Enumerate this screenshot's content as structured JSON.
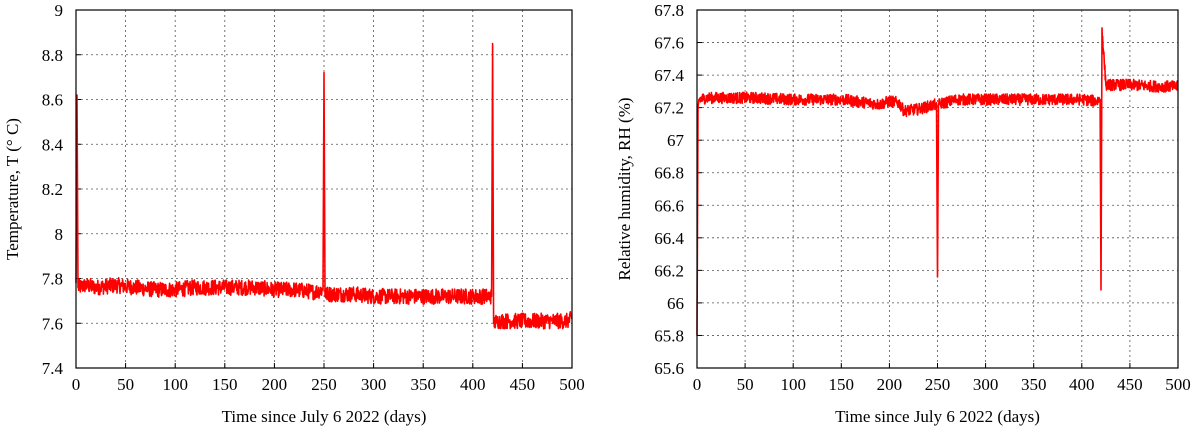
{
  "chart_data": [
    {
      "type": "line",
      "xlabel": "Time since July 6 2022 (days)",
      "ylabel": "Temperature, T (° C)",
      "xlim": [
        0,
        500
      ],
      "ylim": [
        7.4,
        9.0
      ],
      "xticks": [
        "0",
        "50",
        "100",
        "150",
        "200",
        "250",
        "300",
        "350",
        "400",
        "450",
        "500"
      ],
      "yticks": [
        "7.4",
        "7.6",
        "7.8",
        "8",
        "8.2",
        "8.4",
        "8.6",
        "8.8",
        "9"
      ],
      "grid": true,
      "series": [
        {
          "color": "#ff0000",
          "x": [
            0,
            1,
            2,
            10,
            20,
            40,
            60,
            80,
            100,
            120,
            150,
            180,
            200,
            220,
            240,
            249,
            250,
            251,
            260,
            280,
            300,
            320,
            340,
            360,
            380,
            400,
            415,
            419,
            420,
            421,
            425,
            440,
            460,
            480,
            495,
            500
          ],
          "y": [
            7.78,
            8.62,
            7.76,
            7.77,
            7.76,
            7.77,
            7.76,
            7.75,
            7.75,
            7.76,
            7.76,
            7.76,
            7.75,
            7.75,
            7.74,
            7.75,
            8.72,
            7.73,
            7.73,
            7.73,
            7.72,
            7.72,
            7.72,
            7.72,
            7.72,
            7.72,
            7.72,
            7.72,
            8.85,
            7.6,
            7.61,
            7.61,
            7.61,
            7.61,
            7.61,
            7.62
          ]
        }
      ]
    },
    {
      "type": "line",
      "xlabel": "Time since July 6 2022 (days)",
      "ylabel": "Relative humidity, RH (%)",
      "xlim": [
        0,
        500
      ],
      "ylim": [
        65.6,
        67.8
      ],
      "xticks": [
        "0",
        "50",
        "100",
        "150",
        "200",
        "250",
        "300",
        "350",
        "400",
        "450",
        "500"
      ],
      "yticks": [
        "65.6",
        "65.8",
        "66",
        "66.2",
        "66.4",
        "66.6",
        "66.8",
        "67",
        "67.2",
        "67.4",
        "67.6",
        "67.8"
      ],
      "grid": true,
      "series": [
        {
          "color": "#ff0000",
          "x": [
            0,
            1,
            2,
            10,
            30,
            60,
            100,
            150,
            190,
            200,
            210,
            215,
            230,
            248,
            249,
            250,
            251,
            270,
            300,
            350,
            400,
            415,
            419,
            420,
            421,
            425,
            450,
            480,
            500
          ],
          "y": [
            65.8,
            67.2,
            67.25,
            67.26,
            67.26,
            67.26,
            67.25,
            67.25,
            67.22,
            67.24,
            67.23,
            67.18,
            67.19,
            67.22,
            67.23,
            66.16,
            67.22,
            67.25,
            67.25,
            67.25,
            67.25,
            67.24,
            67.25,
            66.08,
            67.69,
            67.34,
            67.34,
            67.33,
            67.33
          ]
        }
      ]
    }
  ]
}
